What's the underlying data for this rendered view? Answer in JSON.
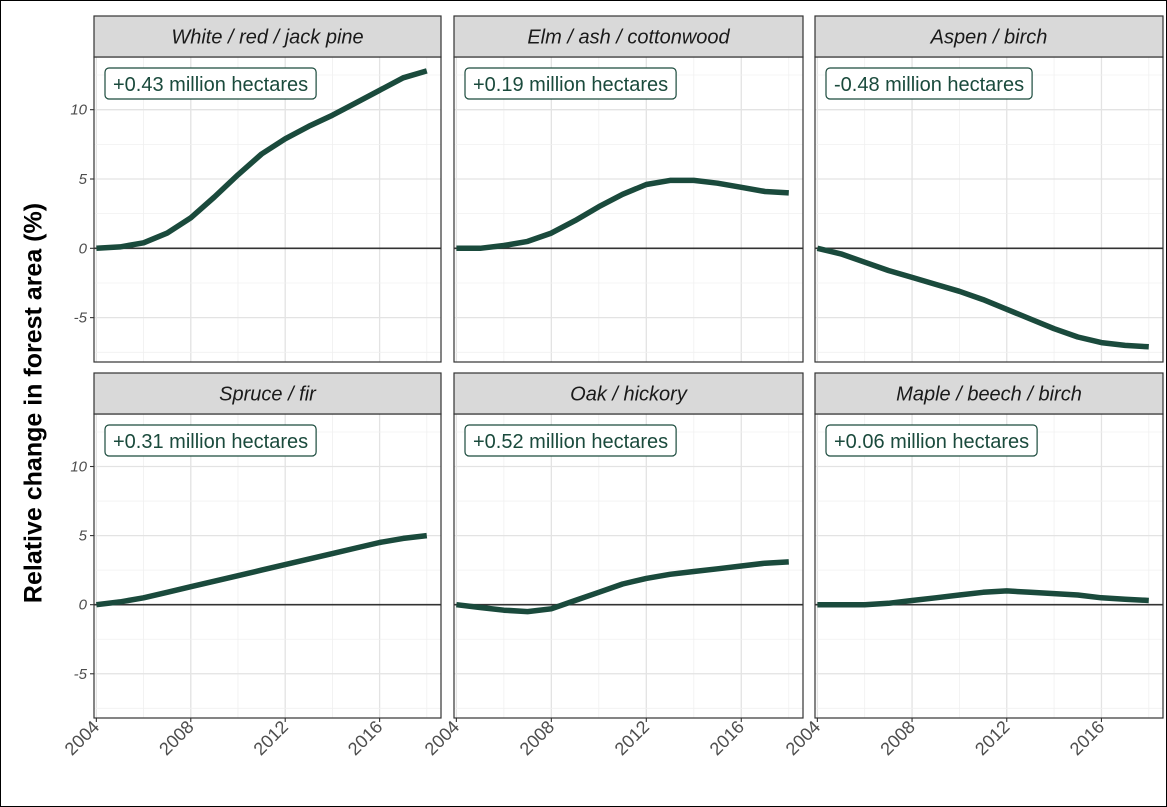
{
  "chart_data": {
    "type": "line",
    "ylabel": "Relative change in forest area (%)",
    "xlabel": "",
    "x": [
      2004,
      2005,
      2006,
      2007,
      2008,
      2009,
      2010,
      2011,
      2012,
      2013,
      2014,
      2015,
      2016,
      2017,
      2018
    ],
    "xlim": [
      2003.9,
      2018.6
    ],
    "ylim": [
      -8.2,
      13.8
    ],
    "x_ticks": [
      "2004",
      "2008",
      "2012",
      "2016"
    ],
    "y_ticks": [
      "-5",
      "0",
      "5",
      "10"
    ],
    "grid": true,
    "line_color": "#1a4a3c",
    "panels": [
      {
        "title": "White / red / jack pine",
        "annotation": "+0.43 million hectares",
        "values": [
          0.0,
          0.1,
          0.4,
          1.1,
          2.2,
          3.7,
          5.3,
          6.8,
          7.9,
          8.8,
          9.6,
          10.5,
          11.4,
          12.3,
          12.8
        ]
      },
      {
        "title": "Elm / ash / cottonwood",
        "annotation": "+0.19 million hectares",
        "values": [
          0.0,
          0.0,
          0.2,
          0.5,
          1.1,
          2.0,
          3.0,
          3.9,
          4.6,
          4.9,
          4.9,
          4.7,
          4.4,
          4.1,
          4.0
        ]
      },
      {
        "title": "Aspen / birch",
        "annotation": "-0.48 million hectares",
        "values": [
          0.0,
          -0.4,
          -1.0,
          -1.6,
          -2.1,
          -2.6,
          -3.1,
          -3.7,
          -4.4,
          -5.1,
          -5.8,
          -6.4,
          -6.8,
          -7.0,
          -7.1
        ]
      },
      {
        "title": "Spruce / fir",
        "annotation": "+0.31 million hectares",
        "values": [
          0.0,
          0.2,
          0.5,
          0.9,
          1.3,
          1.7,
          2.1,
          2.5,
          2.9,
          3.3,
          3.7,
          4.1,
          4.5,
          4.8,
          5.0
        ]
      },
      {
        "title": "Oak / hickory",
        "annotation": "+0.52 million hectares",
        "values": [
          0.0,
          -0.2,
          -0.4,
          -0.5,
          -0.3,
          0.3,
          0.9,
          1.5,
          1.9,
          2.2,
          2.4,
          2.6,
          2.8,
          3.0,
          3.1
        ]
      },
      {
        "title": "Maple / beech / birch",
        "annotation": "+0.06 million hectares",
        "values": [
          0.0,
          0.0,
          0.0,
          0.1,
          0.3,
          0.5,
          0.7,
          0.9,
          1.0,
          0.9,
          0.8,
          0.7,
          0.5,
          0.4,
          0.3
        ]
      }
    ]
  }
}
